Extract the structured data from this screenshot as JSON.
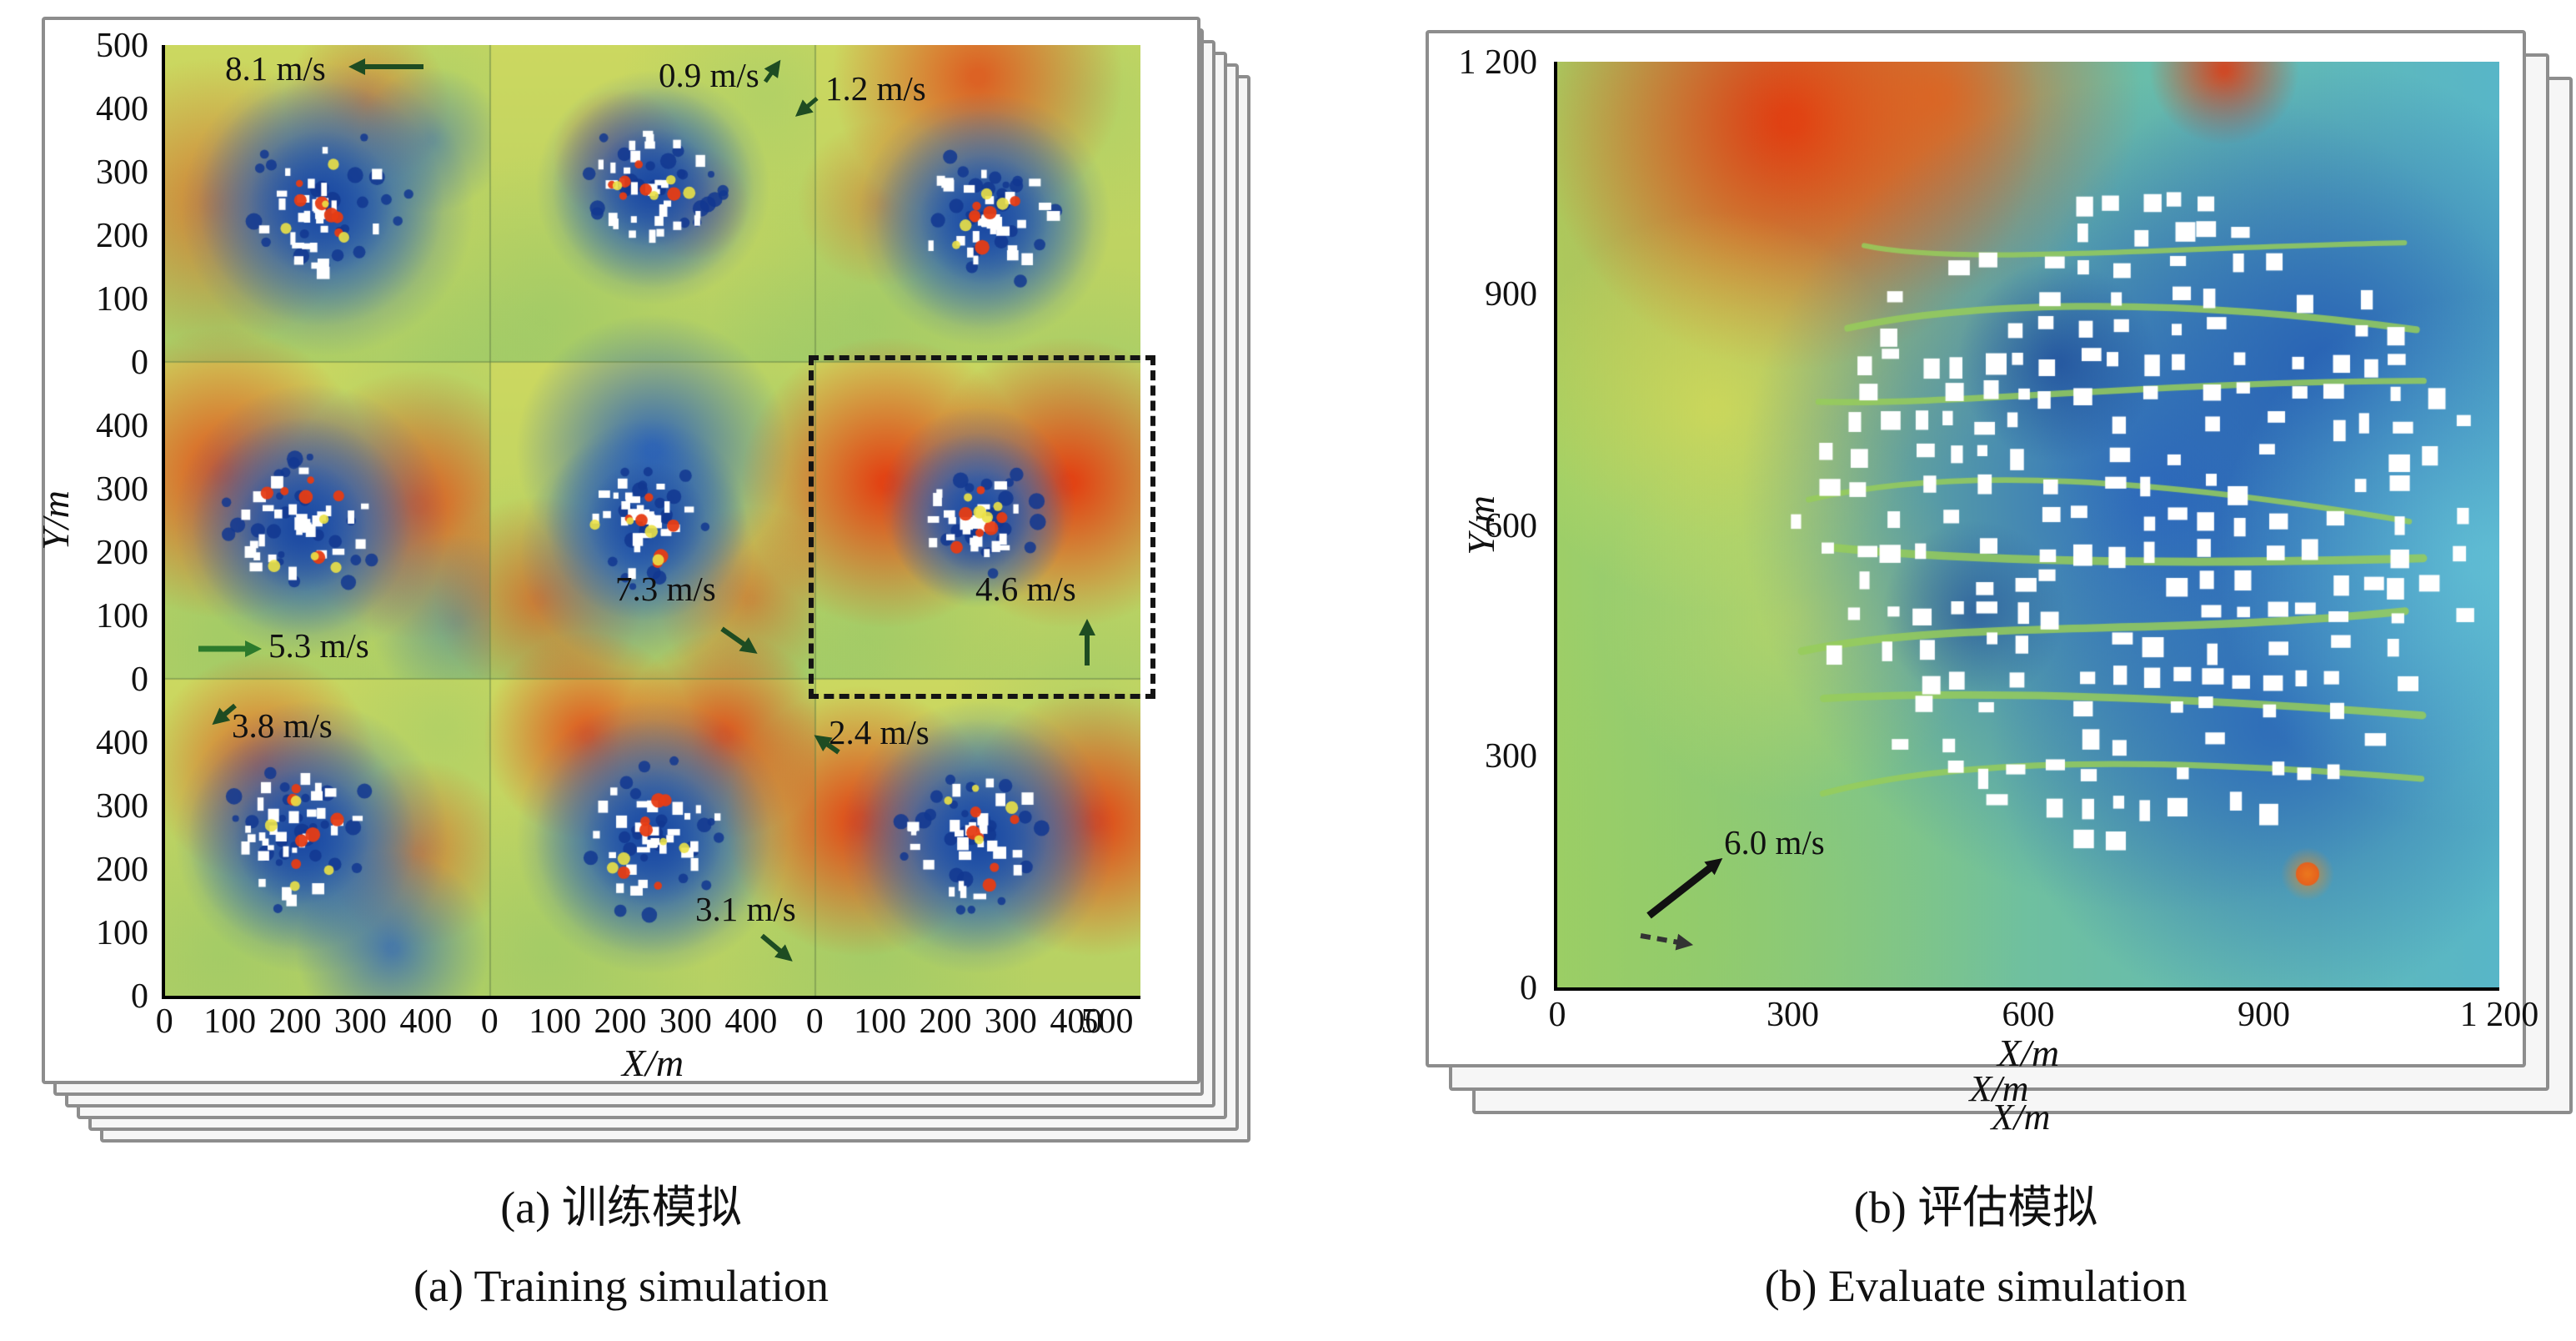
{
  "panel_a": {
    "caption_zh": "(a) 训练模拟",
    "caption_en": "(a) Training simulation",
    "xlabel": "X/m",
    "ylabel": "Y/m",
    "x_ticks_cell": [
      "0",
      "100",
      "200",
      "300",
      "400"
    ],
    "x_tick_end": "500",
    "y_ticks_groups": [
      [
        "500",
        "400",
        "300",
        "200",
        "100",
        "0"
      ],
      [
        "400",
        "300",
        "200",
        "100",
        "0"
      ],
      [
        "400",
        "300",
        "200",
        "100",
        "0"
      ]
    ],
    "annotations": [
      {
        "label": "8.1 m/s"
      },
      {
        "label": "0.9 m/s"
      },
      {
        "label": "1.2 m/s"
      },
      {
        "label": "7.3 m/s"
      },
      {
        "label": "4.6 m/s"
      },
      {
        "label": "5.3 m/s"
      },
      {
        "label": "3.8 m/s"
      },
      {
        "label": "2.4 m/s"
      },
      {
        "label": "3.1 m/s"
      }
    ]
  },
  "panel_b": {
    "caption_zh": "(b) 评估模拟",
    "caption_en": "(b) Evaluate simulation",
    "xlabel": "X/m",
    "ylabel": "Y/m",
    "x_ticks": [
      "0",
      "300",
      "600",
      "900",
      "1 200"
    ],
    "y_ticks": [
      "1 200",
      "900",
      "600",
      "300",
      "0"
    ],
    "stack_xlabels": [
      "X/m",
      "X/m"
    ],
    "annotation": {
      "label": "6.0 m/s"
    }
  },
  "chart_data": [
    {
      "type": "heatmap",
      "title": "(a) Training simulation / 训练模拟",
      "xlabel": "X/m",
      "ylabel": "Y/m",
      "layout": "3x3 grid of urban wind-field CFD simulations, stacked pages behind",
      "xlim": [
        0,
        500
      ],
      "ylim": [
        0,
        500
      ],
      "x_ticks": [
        0,
        100,
        200,
        300,
        400,
        500
      ],
      "y_ticks": [
        0,
        100,
        200,
        300,
        400,
        500
      ],
      "subplots": [
        {
          "row": 1,
          "col": 1,
          "inlet_wind_speed": "8.1 m/s"
        },
        {
          "row": 1,
          "col": 2,
          "inlet_wind_speed": "0.9 m/s"
        },
        {
          "row": 1,
          "col": 3,
          "inlet_wind_speed": "1.2 m/s"
        },
        {
          "row": 2,
          "col": 1,
          "inlet_wind_speed": "5.3 m/s"
        },
        {
          "row": 2,
          "col": 2,
          "inlet_wind_speed": "7.3 m/s"
        },
        {
          "row": 2,
          "col": 3,
          "inlet_wind_speed": "4.6 m/s",
          "highlighted_dashed_box": true
        },
        {
          "row": 3,
          "col": 1,
          "inlet_wind_speed": "3.8 m/s"
        },
        {
          "row": 3,
          "col": 2,
          "inlet_wind_speed": "3.1 m/s"
        },
        {
          "row": 3,
          "col": 3,
          "inlet_wind_speed": "2.4 m/s"
        }
      ],
      "colormap": "blue (low) - green/yellow - red (high), white = buildings"
    },
    {
      "type": "heatmap",
      "title": "(b) Evaluate simulation / 评估模拟",
      "xlabel": "X/m",
      "ylabel": "Y/m",
      "layout": "single large urban wind-field simulation, stacked pages behind",
      "xlim": [
        0,
        1200
      ],
      "ylim": [
        0,
        1200
      ],
      "x_ticks": [
        0,
        300,
        600,
        900,
        1200
      ],
      "y_ticks": [
        0,
        300,
        600,
        900,
        1200
      ],
      "inlet_wind_speed": "6.0 m/s",
      "colormap": "blue (low) - green/yellow - red (high), white = buildings"
    }
  ]
}
